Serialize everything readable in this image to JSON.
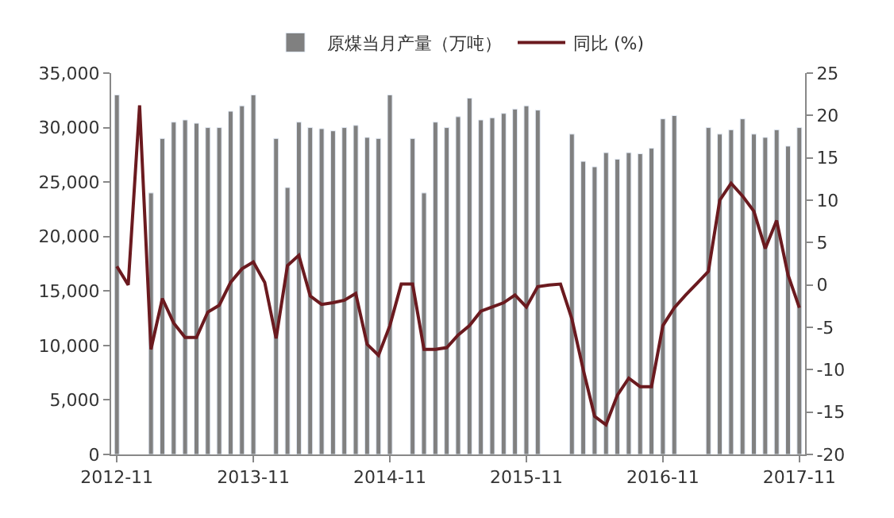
{
  "chart_data": {
    "type": "bar",
    "categories": [
      "2012-11",
      null,
      null,
      null,
      null,
      null,
      null,
      null,
      null,
      null,
      null,
      null,
      "2013-11",
      null,
      null,
      null,
      null,
      null,
      null,
      null,
      null,
      null,
      null,
      null,
      "2014-11",
      null,
      null,
      null,
      null,
      null,
      null,
      null,
      null,
      null,
      null,
      null,
      "2015-11",
      null,
      null,
      null,
      null,
      null,
      null,
      null,
      null,
      null,
      null,
      null,
      "2016-11",
      null,
      null,
      null,
      null,
      null,
      null,
      null,
      null,
      null,
      null,
      null,
      "2017-11"
    ],
    "series": [
      {
        "name": "原煤当月产量（万吨）",
        "color": "#808080",
        "values": [
          33000,
          null,
          null,
          24000,
          29000,
          30500,
          30700,
          30400,
          30000,
          30000,
          31500,
          32000,
          33000,
          null,
          29000,
          24500,
          30500,
          30000,
          29900,
          29700,
          30000,
          30200,
          29100,
          29000,
          33000,
          null,
          29000,
          24000,
          30500,
          30000,
          31000,
          32700,
          30700,
          30900,
          31300,
          31700,
          32000,
          31600,
          null,
          null,
          29400,
          26900,
          26400,
          27700,
          27100,
          27700,
          27600,
          28100,
          30800,
          31100,
          null,
          null,
          30000,
          29400,
          29800,
          30800,
          29400,
          29100,
          29800,
          28300,
          30000
        ]
      },
      {
        "name": "同比 (%)",
        "type": "line",
        "axis": "y2",
        "color": "#6b1a1f",
        "values": [
          2.2,
          0,
          21.2,
          -7.6,
          -1.6,
          -4.5,
          -6.2,
          -6.2,
          -3.2,
          -2.4,
          0.3,
          1.9,
          2.7,
          0.3,
          -6.3,
          2.3,
          3.5,
          -1.3,
          -2.3,
          -2.1,
          -1.8,
          -1.0,
          -7.0,
          -8.3,
          -4.8,
          0.1,
          0.1,
          -7.6,
          -7.6,
          -7.4,
          -5.9,
          -4.8,
          -3.1,
          -2.6,
          -2.1,
          -1.2,
          -2.6,
          -0.2,
          0,
          0.1,
          -4,
          -10,
          -15.5,
          -16.5,
          -13,
          -11,
          -12,
          -12,
          -4.8,
          -2.7,
          -1.2,
          0.2,
          1.6,
          10,
          12,
          10.5,
          8.7,
          4.3,
          7.6,
          1.2,
          -2.7
        ]
      }
    ],
    "ylim": [
      0,
      35000
    ],
    "yticks": [
      {
        "value": 0,
        "label": "0"
      },
      {
        "value": 5000,
        "label": "5,000"
      },
      {
        "value": 10000,
        "label": "10,000"
      },
      {
        "value": 15000,
        "label": "15,000"
      },
      {
        "value": 20000,
        "label": "20,000"
      },
      {
        "value": 25000,
        "label": "25,000"
      },
      {
        "value": 30000,
        "label": "30,000"
      },
      {
        "value": 35000,
        "label": "35,000"
      }
    ],
    "y2lim": [
      -20,
      25
    ],
    "y2ticks": [
      -20,
      -15,
      -10,
      -5,
      0,
      5,
      10,
      15,
      20,
      25
    ],
    "legend": "top",
    "marker": "none",
    "line_style": "solid"
  }
}
